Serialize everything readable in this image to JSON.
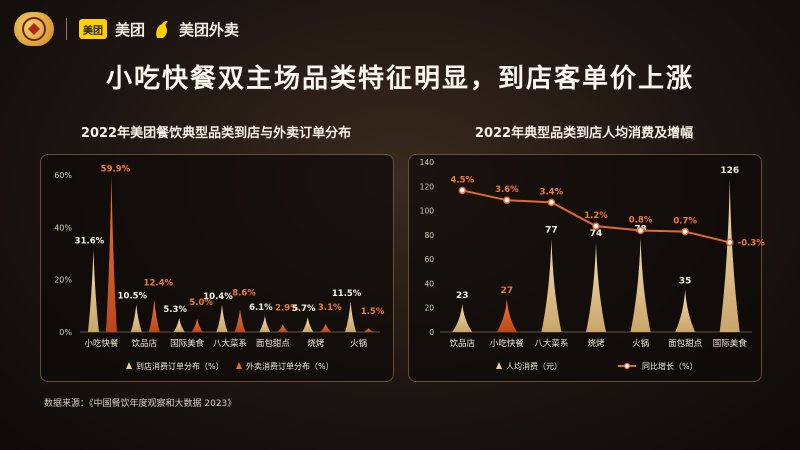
{
  "header": {
    "badge_text": "",
    "brand_meituan_box": "美团",
    "brand_meituan": "美团",
    "brand_waimai": "美团外卖",
    "badge_icon": "anniversary-seal-icon",
    "roo_icon": "kangaroo-icon"
  },
  "headline": "小吃快餐双主场品类特征明显，到店客单价上涨",
  "source": "数据来源：《中国餐饮年度观察和大数据 2023》",
  "colors": {
    "cream": "#e9cf9c",
    "orange": "#e26a2c",
    "line": "#e36a2a",
    "bg": "#1d1511"
  },
  "chart_data": [
    {
      "type": "bar",
      "title": "2022年美团餐饮典型品类到店与外卖订单分布",
      "categories": [
        "小吃快餐",
        "饮品店",
        "国际美食",
        "八大菜系",
        "面包甜点",
        "烧烤",
        "火锅"
      ],
      "series": [
        {
          "name": "到店消费订单分布（%）",
          "values": [
            31.6,
            10.5,
            5.3,
            10.4,
            6.1,
            5.7,
            11.5
          ],
          "labels": [
            "31.6%",
            "10.5%",
            "5.3%",
            "10.4%",
            "6.1%",
            "5.7%",
            "11.5%"
          ]
        },
        {
          "name": "外卖消费订单分布（%）",
          "values": [
            59.9,
            12.4,
            5.0,
            8.6,
            2.9,
            3.1,
            1.5
          ],
          "labels": [
            "59.9%",
            "12.4%",
            "5.0%",
            "8.6%",
            "2.9%",
            "3.1%",
            "1.5%"
          ]
        }
      ],
      "yticks": [
        "0%",
        "20%",
        "40%",
        "60%"
      ],
      "ylim": [
        0,
        60
      ],
      "legend": "bottom"
    },
    {
      "type": "bar",
      "title": "2022年典型品类到店人均消费及增幅",
      "categories": [
        "饮品店",
        "小吃快餐",
        "八大菜系",
        "烧烤",
        "火锅",
        "面包甜点",
        "国际美食"
      ],
      "series": [
        {
          "name": "人均消费（元）",
          "type": "bar",
          "values": [
            23,
            27,
            77,
            74,
            78,
            35,
            126
          ],
          "labels": [
            "23",
            "27",
            "77",
            "74",
            "78",
            "35",
            "126"
          ]
        },
        {
          "name": "同比增长（%）",
          "type": "line",
          "values": [
            4.5,
            3.6,
            3.4,
            1.2,
            0.8,
            0.7,
            -0.3
          ],
          "labels": [
            "4.5%",
            "3.6%",
            "3.4%",
            "1.2%",
            "0.8%",
            "0.7%",
            "-0.3%"
          ]
        }
      ],
      "yticks": [
        "0",
        "20",
        "40",
        "60",
        "80",
        "100",
        "120",
        "140"
      ],
      "ylim": [
        0,
        140
      ],
      "legend": "bottom"
    }
  ]
}
